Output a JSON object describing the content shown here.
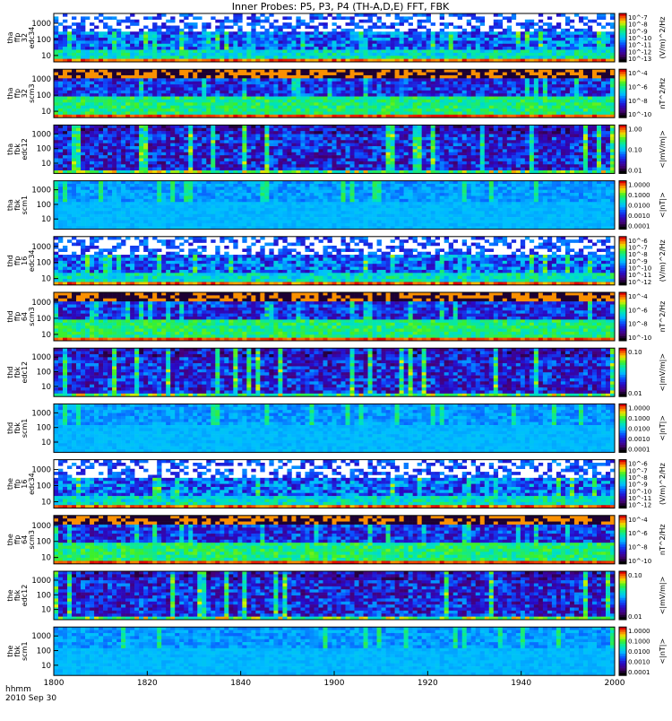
{
  "title": "Inner Probes: P5, P3, P4 (TH-A,D,E) FFT, FBK",
  "x_axis": {
    "tick_labels": [
      "1800",
      "1820",
      "1840",
      "1900",
      "1920",
      "1940",
      "2000"
    ],
    "label_line1": "hhmm",
    "label_line2": "2010 Sep 30"
  },
  "colors": {
    "background": "#ffffff",
    "axis": "#000000"
  },
  "chart_data": {
    "type": "heatmap",
    "title": "Inner Probes: P5, P3, P4 (TH-A,D,E) FFT, FBK",
    "x_ticks": [
      "1800",
      "1820",
      "1840",
      "1900",
      "1920",
      "1940",
      "2000"
    ],
    "x_range": [
      "18:00",
      "20:00"
    ],
    "panels": [
      {
        "label": [
          "tha",
          "ffp",
          "32",
          "edc34"
        ],
        "kind": "fft_e",
        "y_ticks": [
          "1000",
          "100",
          "10"
        ],
        "ylim": [
          4,
          4096
        ],
        "yscale": "log",
        "colorbar_ticks": [
          "10^-7",
          "10^-8",
          "10^-9",
          "10^-10",
          "10^-11",
          "10^-12",
          "10^-13"
        ],
        "colorbar_label": "(V/m)^2/Hz"
      },
      {
        "label": [
          "tha",
          "ffp",
          "32",
          "scm3"
        ],
        "kind": "fft_b",
        "y_ticks": [
          "1000",
          "100",
          "10"
        ],
        "ylim": [
          4,
          4096
        ],
        "yscale": "log",
        "colorbar_ticks": [
          "10^-4",
          "10^-6",
          "10^-8",
          "10^-10"
        ],
        "colorbar_label": "nT^2/Hz"
      },
      {
        "label": [
          "tha",
          "fbk",
          "edc12"
        ],
        "kind": "fbk_e",
        "y_ticks": [
          "1000",
          "100",
          "10"
        ],
        "ylim": [
          2,
          4096
        ],
        "yscale": "log",
        "colorbar_ticks": [
          "1.00",
          "0.10",
          "0.01"
        ],
        "colorbar_label": "<|mV/m|>"
      },
      {
        "label": [
          "tha",
          "fbk",
          "scm1"
        ],
        "kind": "fbk_b",
        "y_ticks": [
          "1000",
          "100",
          "10"
        ],
        "ylim": [
          2,
          4096
        ],
        "yscale": "log",
        "colorbar_ticks": [
          "1.0000",
          "0.1000",
          "0.0100",
          "0.0010",
          "0.0001"
        ],
        "colorbar_label": "<|nT|>"
      },
      {
        "label": [
          "thd",
          "ffp",
          "16",
          "edc34"
        ],
        "kind": "fft_e",
        "y_ticks": [
          "1000",
          "100",
          "10"
        ],
        "ylim": [
          4,
          4096
        ],
        "yscale": "log",
        "colorbar_ticks": [
          "10^-6",
          "10^-7",
          "10^-8",
          "10^-9",
          "10^-10",
          "10^-11",
          "10^-12"
        ],
        "colorbar_label": "(V/m)^2/Hz"
      },
      {
        "label": [
          "thd",
          "ffp",
          "64",
          "scm3"
        ],
        "kind": "fft_b",
        "y_ticks": [
          "1000",
          "100",
          "10"
        ],
        "ylim": [
          4,
          4096
        ],
        "yscale": "log",
        "colorbar_ticks": [
          "10^-4",
          "10^-6",
          "10^-8",
          "10^-10"
        ],
        "colorbar_label": "nT^2/Hz"
      },
      {
        "label": [
          "thd",
          "fbk",
          "edc12"
        ],
        "kind": "fbk_e",
        "y_ticks": [
          "1000",
          "100",
          "10"
        ],
        "ylim": [
          2,
          4096
        ],
        "yscale": "log",
        "colorbar_ticks": [
          "0.10",
          "0.01"
        ],
        "colorbar_label": "<|mV/m|>"
      },
      {
        "label": [
          "thd",
          "fbk",
          "scm1"
        ],
        "kind": "fbk_b",
        "y_ticks": [
          "1000",
          "100",
          "10"
        ],
        "ylim": [
          2,
          4096
        ],
        "yscale": "log",
        "colorbar_ticks": [
          "1.0000",
          "0.1000",
          "0.0100",
          "0.0010",
          "0.0001"
        ],
        "colorbar_label": "<|nT|>"
      },
      {
        "label": [
          "the",
          "ffp",
          "16",
          "edc34"
        ],
        "kind": "fft_e",
        "y_ticks": [
          "1000",
          "100",
          "10"
        ],
        "ylim": [
          4,
          4096
        ],
        "yscale": "log",
        "colorbar_ticks": [
          "10^-6",
          "10^-7",
          "10^-8",
          "10^-9",
          "10^-10",
          "10^-11",
          "10^-12"
        ],
        "colorbar_label": "(V/m)^2/Hz"
      },
      {
        "label": [
          "the",
          "ffp",
          "64",
          "scm3"
        ],
        "kind": "fft_b",
        "y_ticks": [
          "1000",
          "100",
          "10"
        ],
        "ylim": [
          4,
          4096
        ],
        "yscale": "log",
        "colorbar_ticks": [
          "10^-4",
          "10^-6",
          "10^-8",
          "10^-10"
        ],
        "colorbar_label": "nT^2/Hz"
      },
      {
        "label": [
          "the",
          "fbk",
          "edc12"
        ],
        "kind": "fbk_e",
        "y_ticks": [
          "1000",
          "100",
          "10"
        ],
        "ylim": [
          2,
          4096
        ],
        "yscale": "log",
        "colorbar_ticks": [
          "0.10",
          "0.01"
        ],
        "colorbar_label": "<|mV/m|>"
      },
      {
        "label": [
          "the",
          "fbk",
          "scm1"
        ],
        "kind": "fbk_b",
        "y_ticks": [
          "1000",
          "100",
          "10"
        ],
        "ylim": [
          2,
          4096
        ],
        "yscale": "log",
        "colorbar_ticks": [
          "1.0000",
          "0.1000",
          "0.0100",
          "0.0010",
          "0.0001"
        ],
        "colorbar_label": "<|nT|>"
      }
    ],
    "grid": false,
    "colormap": "rainbow (black-purple-blue-cyan-green-yellow-red)"
  }
}
